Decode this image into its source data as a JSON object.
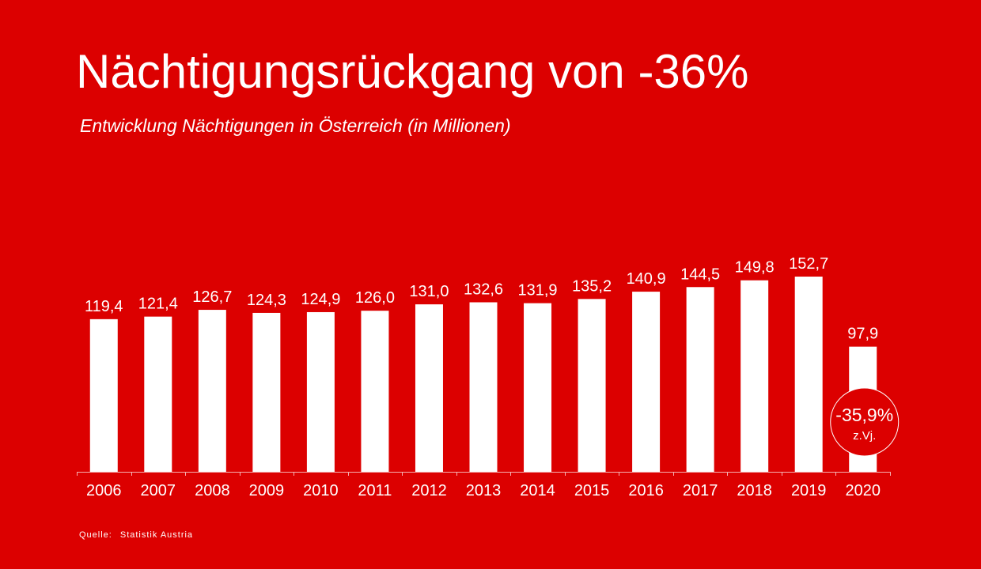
{
  "header": {
    "title": "Nächtigungsrückgang von -36%",
    "subtitle": "Entwicklung Nächtigungen in Österreich (in Millionen)"
  },
  "footer": {
    "source_label": "Quelle:",
    "source_value": "Statistik Austria"
  },
  "colors": {
    "background": "#dc0000",
    "bars": "#ffffff",
    "text": "#ffffff"
  },
  "chart_data": {
    "type": "bar",
    "categories": [
      "2006",
      "2007",
      "2008",
      "2009",
      "2010",
      "2011",
      "2012",
      "2013",
      "2014",
      "2015",
      "2016",
      "2017",
      "2018",
      "2019",
      "2020"
    ],
    "values": [
      119.4,
      121.4,
      126.7,
      124.3,
      124.9,
      126.0,
      131.0,
      132.6,
      131.9,
      135.2,
      140.9,
      144.5,
      149.8,
      152.7,
      97.9
    ],
    "value_labels": [
      "119,4",
      "121,4",
      "126,7",
      "124,3",
      "124,9",
      "126,0",
      "131,0",
      "132,6",
      "131,9",
      "135,2",
      "140,9",
      "144,5",
      "149,8",
      "152,7",
      "97,9"
    ],
    "ylim": [
      0,
      160
    ],
    "grid": false,
    "annotation": {
      "category": "2020",
      "value": "-35,9%",
      "sublabel": "z.Vj."
    }
  }
}
